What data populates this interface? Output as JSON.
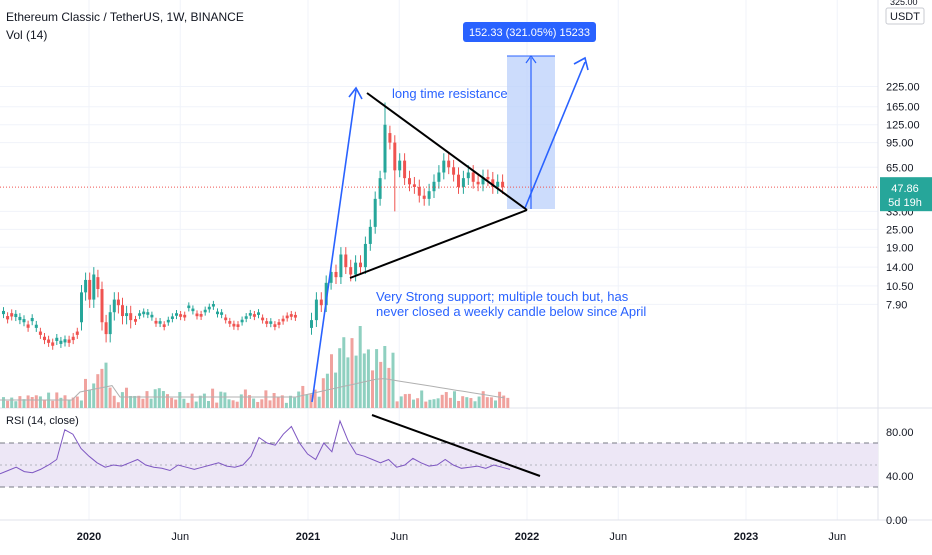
{
  "header": {
    "symbol_title": "Ethereum Classic / TetherUS, 1W, BINANCE",
    "volume_label": "Vol (14)",
    "rsi_label": "RSI (14, close)",
    "currency": "USDT",
    "top_price_partial": "325.00"
  },
  "colors": {
    "up": "#26a69a",
    "down": "#ef5350",
    "vol_up": "#8fd0c0",
    "vol_down": "#f0a29e",
    "rsi_line": "#7e57c2",
    "rsi_band": "#ede7f6",
    "annotation": "#2962ff",
    "price_line": "#ef5350",
    "price_badge": "#26a69a",
    "measure_badge": "#2962ff",
    "grid": "#f0f3fa"
  },
  "annotations": {
    "resistance_text": "long time resistance",
    "support_text_line1": "Very Strong support; multiple touch but, has",
    "support_text_line2": "never closed a weekly candle below since April",
    "measure_label": "152.33 (321.05%) 15233"
  },
  "price_badge": {
    "price": "47.86",
    "countdown": "5d 19h"
  },
  "chart_data": [
    {
      "type": "candlestick",
      "title": "Ethereum Classic / TetherUS, 1W, BINANCE",
      "y_scale": "log",
      "y_ticks": [
        7.9,
        10.5,
        14,
        19,
        25,
        33,
        47.86,
        65,
        95,
        125,
        165,
        225
      ],
      "y_tick_labels": [
        "7.90",
        "10.50",
        "14.00",
        "19.00",
        "25.00",
        "33.00",
        "47.86",
        "65.00",
        "95.00",
        "125.00",
        "165.00",
        "225.00"
      ],
      "x_tick_labels": [
        "2020",
        "Jun",
        "2021",
        "Jun",
        "2022",
        "Jun",
        "2023",
        "Jun"
      ],
      "current_price": 47.86,
      "candles_weekly": [
        {
          "period": "2019-08",
          "open": 6.9,
          "high": 7.3,
          "low": 6.5,
          "close": 6.9
        },
        {
          "period": "2019-12",
          "open": 4.1,
          "high": 4.6,
          "low": 3.8,
          "close": 4.5
        },
        {
          "period": "2020-02",
          "open": 8.9,
          "high": 13.0,
          "low": 7.8,
          "close": 11.2
        },
        {
          "period": "2020-03",
          "open": 10.5,
          "high": 10.8,
          "low": 4.0,
          "close": 4.9
        },
        {
          "period": "2020-06",
          "open": 6.4,
          "high": 6.7,
          "low": 6.1,
          "close": 6.2
        },
        {
          "period": "2020-08",
          "open": 6.8,
          "high": 8.7,
          "low": 6.6,
          "close": 7.7
        },
        {
          "period": "2020-12",
          "open": 5.2,
          "high": 6.0,
          "low": 5.1,
          "close": 5.7
        },
        {
          "period": "2021-01",
          "open": 5.7,
          "high": 9.5,
          "low": 5.6,
          "close": 8.5
        },
        {
          "period": "2021-02",
          "open": 9.0,
          "high": 18.0,
          "low": 8.8,
          "close": 13.5
        },
        {
          "period": "2021-03",
          "open": 12.5,
          "high": 15.0,
          "low": 11.0,
          "close": 12.4
        },
        {
          "period": "2021-04",
          "open": 14.0,
          "high": 41.0,
          "low": 13.8,
          "close": 40.0
        },
        {
          "period": "2021-05",
          "open": 75.0,
          "high": 176.0,
          "low": 70.0,
          "close": 125.0
        },
        {
          "period": "2021-05b",
          "open": 90.0,
          "high": 100.0,
          "low": 32.0,
          "close": 60.0
        },
        {
          "period": "2021-06",
          "open": 60.0,
          "high": 62.0,
          "low": 33.0,
          "close": 42.0
        },
        {
          "period": "2021-07",
          "open": 40.0,
          "high": 44.0,
          "low": 37.0,
          "close": 40.0
        },
        {
          "period": "2021-08",
          "open": 45.0,
          "high": 82.0,
          "low": 44.0,
          "close": 72.0
        },
        {
          "period": "2021-09",
          "open": 70.0,
          "high": 76.0,
          "low": 40.0,
          "close": 48.0
        },
        {
          "period": "2021-10",
          "open": 48.0,
          "high": 62.0,
          "low": 46.0,
          "close": 55.0
        },
        {
          "period": "2021-11",
          "open": 54.0,
          "high": 58.0,
          "low": 43.0,
          "close": 47.0
        },
        {
          "period": "2021-12",
          "open": 47.0,
          "high": 55.0,
          "low": 40.0,
          "close": 47.86
        }
      ]
    },
    {
      "type": "line",
      "title": "RSI (14, close)",
      "ylim": [
        0,
        100
      ],
      "y_ticks": [
        0,
        40,
        80
      ],
      "y_tick_labels": [
        "0.00",
        "40.00",
        "80.00"
      ],
      "bands": [
        30,
        70
      ],
      "values": [
        42,
        45,
        48,
        44,
        43,
        46,
        50,
        55,
        82,
        78,
        65,
        58,
        52,
        48,
        50,
        49,
        52,
        55,
        50,
        48,
        47,
        45,
        50,
        48,
        46,
        48,
        50,
        52,
        49,
        48,
        50,
        58,
        75,
        70,
        68,
        78,
        85,
        70,
        60,
        55,
        70,
        62,
        90,
        72,
        60,
        58,
        55,
        52,
        55,
        48,
        50,
        56,
        52,
        49,
        50,
        55,
        50,
        47,
        48,
        49,
        47,
        50,
        48,
        46
      ]
    }
  ]
}
